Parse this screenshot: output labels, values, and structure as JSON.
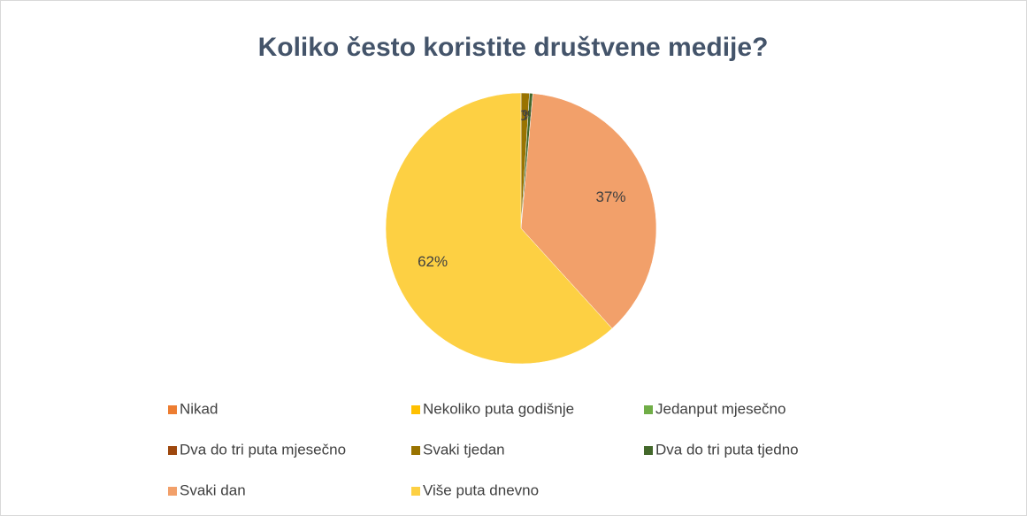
{
  "chart_data": {
    "type": "pie",
    "title": "Koliko često koristite društvene medije?",
    "categories": [
      "Nikad",
      "Nekoliko puta godišnje",
      "Jedanput mjesečno",
      "Dva do tri puta mjesečno",
      "Svaki tjedan",
      "Dva do tri puta tjedno",
      "Svaki dan",
      "Više puta dnevno"
    ],
    "values": [
      0,
      0,
      0,
      0,
      1,
      0.4,
      37,
      62
    ],
    "value_labels": [
      "0%",
      "0%",
      "0%",
      "0%",
      "1%",
      "0%",
      "37%",
      "62%"
    ],
    "colors": [
      "#ed7d31",
      "#ffc000",
      "#70ad47",
      "#9e480e",
      "#997300",
      "#43682b",
      "#f2a06a",
      "#fdd043"
    ],
    "legend": "bottom"
  }
}
